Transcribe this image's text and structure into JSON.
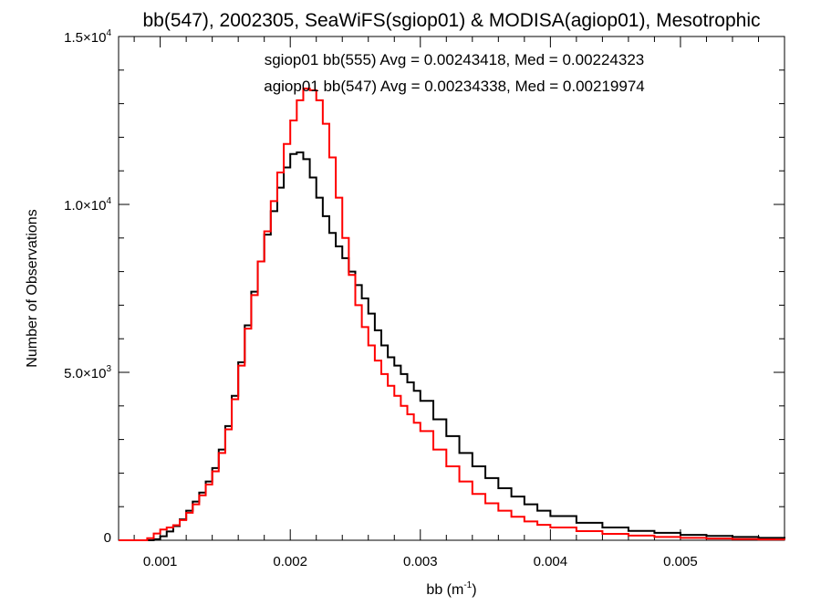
{
  "chart_data": {
    "type": "line",
    "title": "bb(547), 2002305, SeaWiFS(sgiop01) & MODISA(agiop01), Mesotrophic",
    "xlabel": "bb (m",
    "xlabel_sup": "-1",
    "xlabel_close": ")",
    "ylabel": "Number of Observations",
    "xlim": [
      0.00068,
      0.0058
    ],
    "ylim": [
      0,
      15000
    ],
    "x_ticks": [
      {
        "value": 0.001,
        "label": "0.001"
      },
      {
        "value": 0.002,
        "label": "0.002"
      },
      {
        "value": 0.003,
        "label": "0.003"
      },
      {
        "value": 0.004,
        "label": "0.004"
      },
      {
        "value": 0.005,
        "label": "0.005"
      }
    ],
    "y_ticks": [
      {
        "value": 0,
        "label": "0",
        "sup": ""
      },
      {
        "value": 5000,
        "label": "5.0×10",
        "sup": "3"
      },
      {
        "value": 10000,
        "label": "1.0×10",
        "sup": "4"
      },
      {
        "value": 15000,
        "label": "1.5×10",
        "sup": "4"
      }
    ],
    "grid": false,
    "series": [
      {
        "name": "sgiop01 bb(555)",
        "legend_text": "sgiop01 bb(555) Avg = 0.00243418, Med = 0.00224323",
        "color": "#000000",
        "points": [
          [
            0.00068,
            0
          ],
          [
            0.0009,
            0
          ],
          [
            0.00095,
            30
          ],
          [
            0.001,
            120
          ],
          [
            0.00105,
            260
          ],
          [
            0.0011,
            420
          ],
          [
            0.00115,
            620
          ],
          [
            0.0012,
            880
          ],
          [
            0.00125,
            1150
          ],
          [
            0.0013,
            1420
          ],
          [
            0.00135,
            1750
          ],
          [
            0.0014,
            2150
          ],
          [
            0.00145,
            2700
          ],
          [
            0.0015,
            3400
          ],
          [
            0.00155,
            4300
          ],
          [
            0.0016,
            5300
          ],
          [
            0.00165,
            6400
          ],
          [
            0.0017,
            7400
          ],
          [
            0.00175,
            8300
          ],
          [
            0.0018,
            9100
          ],
          [
            0.00185,
            9800
          ],
          [
            0.0019,
            10500
          ],
          [
            0.00195,
            11100
          ],
          [
            0.002,
            11500
          ],
          [
            0.00205,
            11550
          ],
          [
            0.0021,
            11350
          ],
          [
            0.00215,
            10800
          ],
          [
            0.0022,
            10200
          ],
          [
            0.00225,
            9650
          ],
          [
            0.0023,
            9150
          ],
          [
            0.00235,
            8750
          ],
          [
            0.0024,
            8400
          ],
          [
            0.00245,
            8000
          ],
          [
            0.0025,
            7600
          ],
          [
            0.00255,
            7200
          ],
          [
            0.0026,
            6750
          ],
          [
            0.00265,
            6250
          ],
          [
            0.0027,
            5800
          ],
          [
            0.00275,
            5450
          ],
          [
            0.0028,
            5200
          ],
          [
            0.00285,
            4950
          ],
          [
            0.0029,
            4700
          ],
          [
            0.00295,
            4450
          ],
          [
            0.003,
            4150
          ],
          [
            0.0031,
            3600
          ],
          [
            0.0032,
            3100
          ],
          [
            0.0033,
            2600
          ],
          [
            0.0034,
            2200
          ],
          [
            0.0035,
            1850
          ],
          [
            0.0036,
            1550
          ],
          [
            0.0037,
            1300
          ],
          [
            0.0038,
            1070
          ],
          [
            0.0039,
            880
          ],
          [
            0.004,
            720
          ],
          [
            0.0042,
            520
          ],
          [
            0.0044,
            380
          ],
          [
            0.0046,
            280
          ],
          [
            0.0048,
            220
          ],
          [
            0.005,
            160
          ],
          [
            0.0052,
            130
          ],
          [
            0.0054,
            100
          ],
          [
            0.0056,
            70
          ],
          [
            0.0058,
            40
          ]
        ]
      },
      {
        "name": "agiop01 bb(547)",
        "legend_text": "agiop01 bb(547) Avg = 0.00234338, Med = 0.00219974",
        "color": "#ff0000",
        "points": [
          [
            0.00068,
            0
          ],
          [
            0.00085,
            0
          ],
          [
            0.0009,
            60
          ],
          [
            0.00095,
            200
          ],
          [
            0.001,
            320
          ],
          [
            0.00105,
            380
          ],
          [
            0.0011,
            450
          ],
          [
            0.00115,
            600
          ],
          [
            0.0012,
            820
          ],
          [
            0.00125,
            1070
          ],
          [
            0.0013,
            1340
          ],
          [
            0.00135,
            1660
          ],
          [
            0.0014,
            2050
          ],
          [
            0.00145,
            2600
          ],
          [
            0.0015,
            3300
          ],
          [
            0.00155,
            4200
          ],
          [
            0.0016,
            5200
          ],
          [
            0.00165,
            6300
          ],
          [
            0.0017,
            7300
          ],
          [
            0.00175,
            8300
          ],
          [
            0.0018,
            9200
          ],
          [
            0.00185,
            10100
          ],
          [
            0.0019,
            10950
          ],
          [
            0.00195,
            11800
          ],
          [
            0.002,
            12500
          ],
          [
            0.00205,
            13100
          ],
          [
            0.0021,
            13450
          ],
          [
            0.00215,
            13400
          ],
          [
            0.0022,
            13100
          ],
          [
            0.00225,
            12400
          ],
          [
            0.0023,
            11400
          ],
          [
            0.00235,
            10200
          ],
          [
            0.0024,
            9000
          ],
          [
            0.00245,
            7900
          ],
          [
            0.0025,
            7000
          ],
          [
            0.00255,
            6350
          ],
          [
            0.0026,
            5800
          ],
          [
            0.00265,
            5350
          ],
          [
            0.0027,
            4950
          ],
          [
            0.00275,
            4600
          ],
          [
            0.0028,
            4300
          ],
          [
            0.00285,
            4000
          ],
          [
            0.0029,
            3750
          ],
          [
            0.00295,
            3500
          ],
          [
            0.003,
            3250
          ],
          [
            0.0031,
            2700
          ],
          [
            0.0032,
            2200
          ],
          [
            0.0033,
            1750
          ],
          [
            0.0034,
            1380
          ],
          [
            0.0035,
            1100
          ],
          [
            0.0036,
            880
          ],
          [
            0.0037,
            700
          ],
          [
            0.0038,
            560
          ],
          [
            0.0039,
            460
          ],
          [
            0.004,
            380
          ],
          [
            0.0042,
            270
          ],
          [
            0.0044,
            190
          ],
          [
            0.0046,
            140
          ],
          [
            0.0048,
            100
          ],
          [
            0.005,
            70
          ],
          [
            0.0052,
            50
          ],
          [
            0.0054,
            35
          ],
          [
            0.0056,
            25
          ],
          [
            0.0058,
            15
          ]
        ]
      }
    ]
  }
}
